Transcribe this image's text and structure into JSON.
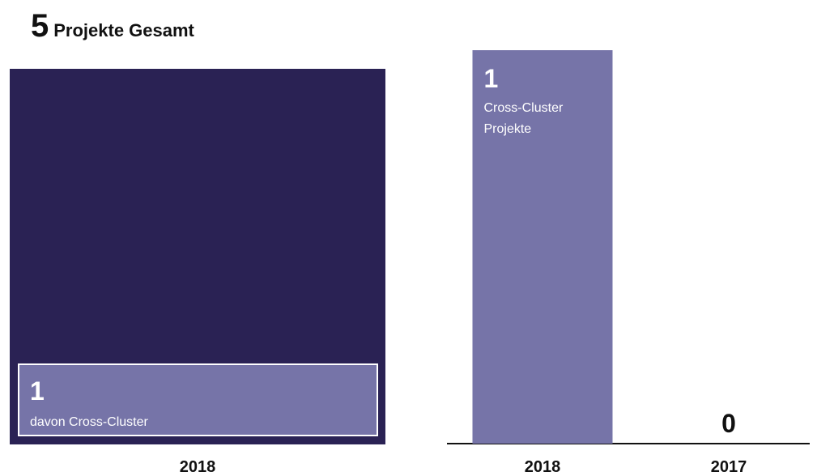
{
  "header": {
    "total": "5",
    "total_label": "Projekte Gesamt"
  },
  "chart_data": [
    {
      "type": "bar",
      "description_year": "2018",
      "categories": [
        "2018"
      ],
      "series": [
        {
          "name": "Projekte Gesamt",
          "values": [
            5
          ]
        },
        {
          "name": "davon Cross-Cluster",
          "values": [
            1
          ]
        }
      ],
      "labels": {
        "inner_value": "1",
        "inner_text": "davon Cross-Cluster",
        "xtick": "2018"
      }
    },
    {
      "type": "bar",
      "categories": [
        "2018",
        "2017"
      ],
      "series": [
        {
          "name": "Cross-Cluster Projekte",
          "values": [
            1,
            0
          ]
        }
      ],
      "ylim": [
        0,
        1
      ],
      "labels": {
        "bar_value": "1",
        "bar_text_line1": "Cross-Cluster",
        "bar_text_line2": "Projekte",
        "zero_value": "0",
        "xticks": [
          "2018",
          "2017"
        ]
      }
    }
  ],
  "colors": {
    "dark_bar": "#2a2254",
    "light_bar": "#7674a8",
    "inner_border": "#ffffff",
    "axis": "#111111",
    "text_dark": "#111111",
    "text_light": "#ffffff"
  }
}
